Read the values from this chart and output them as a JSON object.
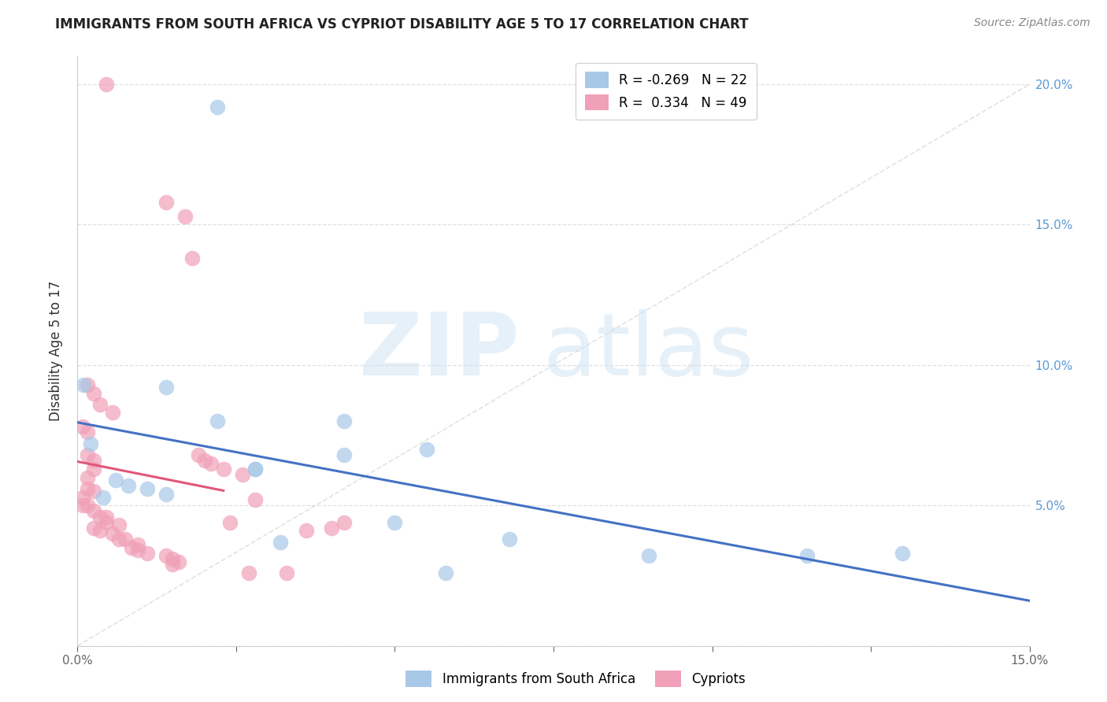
{
  "title": "IMMIGRANTS FROM SOUTH AFRICA VS CYPRIOT DISABILITY AGE 5 TO 17 CORRELATION CHART",
  "source": "Source: ZipAtlas.com",
  "ylabel": "Disability Age 5 to 17",
  "xlim": [
    0,
    0.15
  ],
  "ylim": [
    0,
    0.21
  ],
  "R_blue": -0.269,
  "N_blue": 22,
  "R_pink": 0.334,
  "N_pink": 49,
  "color_blue": "#a8c8e8",
  "color_pink": "#f0a0b8",
  "line_blue": "#4472c4",
  "line_pink": "#e05878",
  "legend_label_blue": "Immigrants from South Africa",
  "legend_label_pink": "Cypriots",
  "blue_x": [
    0.001,
    0.014,
    0.022,
    0.002,
    0.028,
    0.042,
    0.028,
    0.022,
    0.006,
    0.008,
    0.011,
    0.014,
    0.042,
    0.055,
    0.068,
    0.05,
    0.09,
    0.058,
    0.032,
    0.115,
    0.13,
    0.004
  ],
  "blue_y": [
    0.093,
    0.092,
    0.192,
    0.072,
    0.063,
    0.068,
    0.063,
    0.08,
    0.059,
    0.057,
    0.056,
    0.054,
    0.08,
    0.07,
    0.038,
    0.044,
    0.032,
    0.026,
    0.037,
    0.032,
    0.033,
    0.053
  ],
  "pink_x": [
    0.0045,
    0.0015,
    0.0025,
    0.0035,
    0.0055,
    0.0008,
    0.0015,
    0.0015,
    0.0025,
    0.0025,
    0.0015,
    0.0015,
    0.0025,
    0.0008,
    0.0008,
    0.0015,
    0.0025,
    0.0035,
    0.0045,
    0.0045,
    0.0065,
    0.0025,
    0.0035,
    0.0055,
    0.0065,
    0.0075,
    0.0095,
    0.0085,
    0.0095,
    0.011,
    0.014,
    0.015,
    0.016,
    0.015,
    0.019,
    0.02,
    0.021,
    0.014,
    0.017,
    0.018,
    0.023,
    0.026,
    0.024,
    0.042,
    0.04,
    0.036,
    0.028,
    0.033,
    0.027
  ],
  "pink_y": [
    0.2,
    0.093,
    0.09,
    0.086,
    0.083,
    0.078,
    0.076,
    0.068,
    0.066,
    0.063,
    0.06,
    0.056,
    0.055,
    0.053,
    0.05,
    0.05,
    0.048,
    0.046,
    0.046,
    0.044,
    0.043,
    0.042,
    0.041,
    0.04,
    0.038,
    0.038,
    0.036,
    0.035,
    0.034,
    0.033,
    0.032,
    0.031,
    0.03,
    0.029,
    0.068,
    0.066,
    0.065,
    0.158,
    0.153,
    0.138,
    0.063,
    0.061,
    0.044,
    0.044,
    0.042,
    0.041,
    0.052,
    0.026,
    0.026
  ],
  "diag_color": "#d0d0d0",
  "grid_color": "#e0e0e0",
  "right_tick_color": "#5b9bd5"
}
